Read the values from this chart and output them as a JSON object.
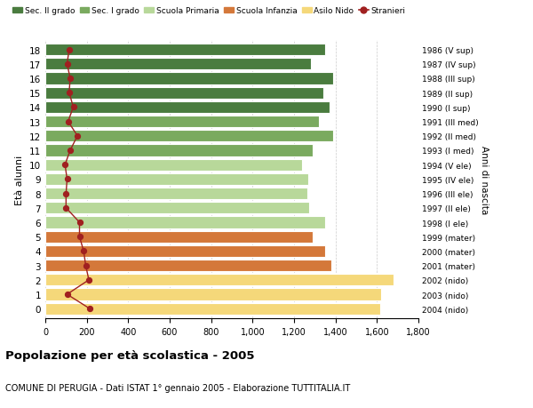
{
  "ages": [
    18,
    17,
    16,
    15,
    14,
    13,
    12,
    11,
    10,
    9,
    8,
    7,
    6,
    5,
    4,
    3,
    2,
    1,
    0
  ],
  "right_labels": [
    "1986 (V sup)",
    "1987 (IV sup)",
    "1988 (III sup)",
    "1989 (II sup)",
    "1990 (I sup)",
    "1991 (III med)",
    "1992 (II med)",
    "1993 (I med)",
    "1994 (V ele)",
    "1995 (IV ele)",
    "1996 (III ele)",
    "1997 (II ele)",
    "1998 (I ele)",
    "1999 (mater)",
    "2000 (mater)",
    "2001 (mater)",
    "2002 (nido)",
    "2003 (nido)",
    "2004 (nido)"
  ],
  "bar_values": [
    1350,
    1280,
    1390,
    1340,
    1370,
    1320,
    1390,
    1290,
    1240,
    1270,
    1265,
    1275,
    1350,
    1290,
    1350,
    1380,
    1680,
    1620,
    1615
  ],
  "stranieri_values": [
    115,
    105,
    120,
    115,
    135,
    110,
    155,
    120,
    95,
    105,
    100,
    100,
    165,
    165,
    185,
    195,
    210,
    105,
    215
  ],
  "bar_colors": [
    "#4a7c3f",
    "#4a7c3f",
    "#4a7c3f",
    "#4a7c3f",
    "#4a7c3f",
    "#7aaa5f",
    "#7aaa5f",
    "#7aaa5f",
    "#b8d89a",
    "#b8d89a",
    "#b8d89a",
    "#b8d89a",
    "#b8d89a",
    "#d4783a",
    "#d4783a",
    "#d4783a",
    "#f5d87a",
    "#f5d87a",
    "#f5d87a"
  ],
  "legend_labels": [
    "Sec. II grado",
    "Sec. I grado",
    "Scuola Primaria",
    "Scuola Infanzia",
    "Asilo Nido",
    "Stranieri"
  ],
  "legend_colors": [
    "#4a7c3f",
    "#7aaa5f",
    "#b8d89a",
    "#d4783a",
    "#f5d87a",
    "#a02020"
  ],
  "ylabel": "Età alunni",
  "right_ylabel": "Anni di nascita",
  "title": "Popolazione per età scolastica - 2005",
  "subtitle": "COMUNE DI PERUGIA - Dati ISTAT 1° gennaio 2005 - Elaborazione TUTTITALIA.IT",
  "xlim": [
    0,
    1800
  ],
  "xticks": [
    0,
    200,
    400,
    600,
    800,
    1000,
    1200,
    1400,
    1600,
    1800
  ],
  "background_color": "#ffffff",
  "grid_color": "#cccccc",
  "stranieri_color": "#a02020",
  "bar_height": 0.82
}
